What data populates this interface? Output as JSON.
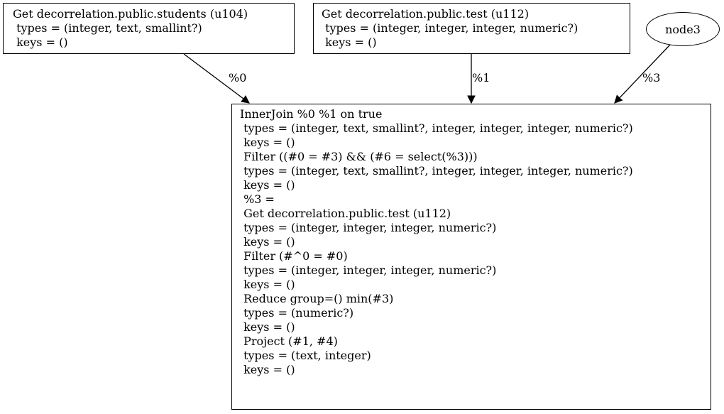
{
  "nodes": {
    "get_students": {
      "lines": [
        "Get decorrelation.public.students (u104)",
        " types = (integer, text, smallint?)",
        " keys = ()"
      ]
    },
    "get_test": {
      "lines": [
        "Get decorrelation.public.test (u112)",
        " types = (integer, integer, integer, numeric?)",
        " keys = ()"
      ]
    },
    "node3": {
      "label": "node3"
    },
    "inner_join": {
      "lines": [
        "InnerJoin %0 %1 on true",
        " types = (integer, text, smallint?, integer, integer, integer, numeric?)",
        " keys = ()",
        " Filter ((#0 = #3) && (#6 = select(%3)))",
        " types = (integer, text, smallint?, integer, integer, integer, numeric?)",
        " keys = ()",
        "",
        " %3 =",
        " Get decorrelation.public.test (u112)",
        " types = (integer, integer, integer, numeric?)",
        " keys = ()",
        " Filter (#^0 = #0)",
        " types = (integer, integer, integer, numeric?)",
        " keys = ()",
        " Reduce group=() min(#3)",
        " types = (numeric?)",
        " keys = ()",
        "",
        " Project (#1, #4)",
        " types = (text, integer)",
        " keys = ()"
      ]
    }
  },
  "edges": [
    {
      "from": "get_students",
      "to": "inner_join",
      "label": "%0"
    },
    {
      "from": "get_test",
      "to": "inner_join",
      "label": "%1"
    },
    {
      "from": "node3",
      "to": "inner_join",
      "label": "%3"
    }
  ]
}
